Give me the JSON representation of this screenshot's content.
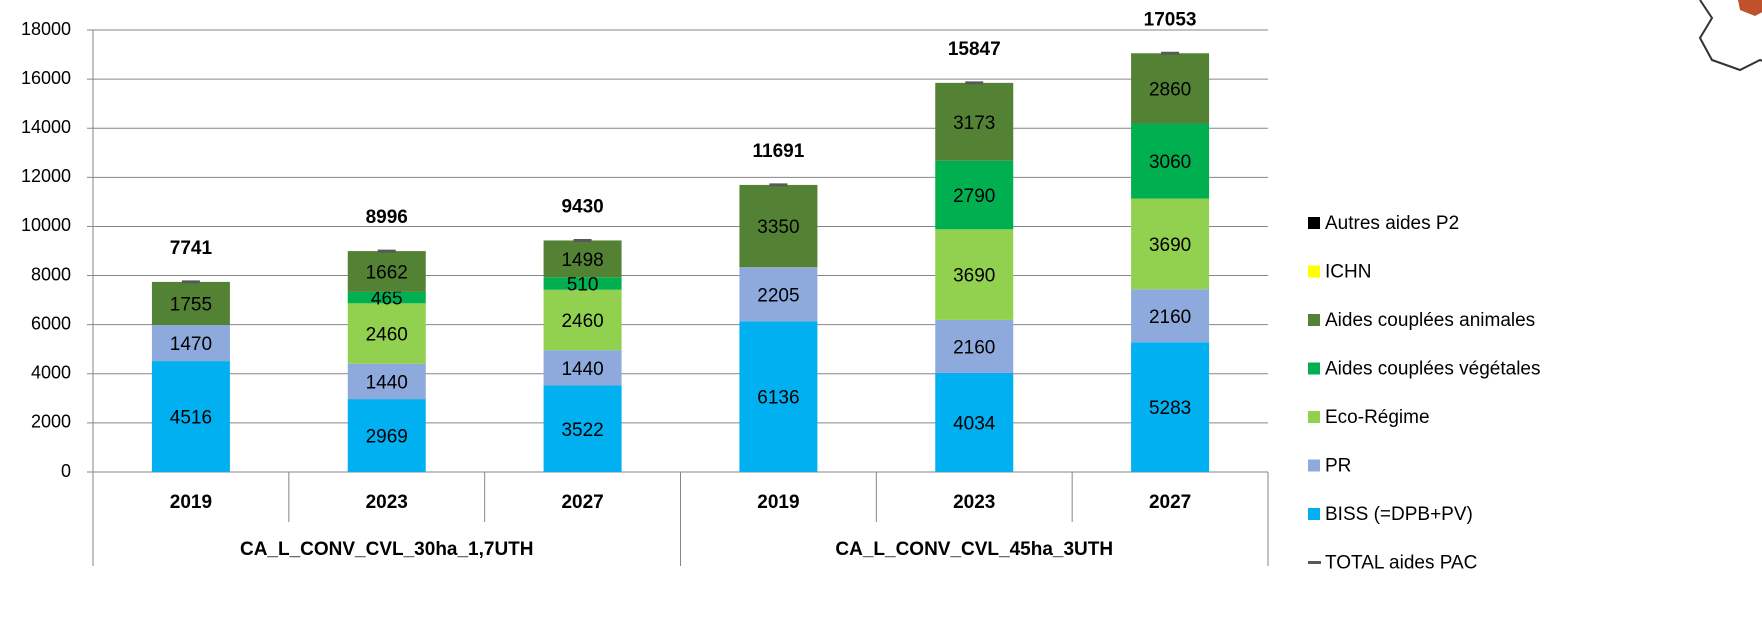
{
  "chart_data": {
    "type": "stacked_bar",
    "categories": [
      "2019",
      "2023",
      "2027",
      "2019",
      "2023",
      "2027"
    ],
    "groups": [
      "CA_L_CONV_CVL_30ha_1,7UTH",
      "CA_L_CONV_CVL_45ha_3UTH"
    ],
    "series": [
      {
        "name": "BISS (=DPB+PV)",
        "color": "#00b0f0",
        "values": [
          4516,
          2969,
          3522,
          6136,
          4034,
          5283
        ]
      },
      {
        "name": "PR",
        "color": "#8eaadc",
        "values": [
          1470,
          1440,
          1440,
          2205,
          2160,
          2160
        ]
      },
      {
        "name": "Eco-Régime",
        "color": "#92d050",
        "values": [
          0,
          2460,
          2460,
          0,
          3690,
          3690
        ]
      },
      {
        "name": "Aides couplées végétales",
        "color": "#00b050",
        "values": [
          0,
          465,
          510,
          0,
          2790,
          3060
        ]
      },
      {
        "name": "Aides couplées animales",
        "color": "#548235",
        "values": [
          1755,
          1662,
          1498,
          3350,
          3173,
          2860
        ]
      },
      {
        "name": "ICHN",
        "color": "#ffff00",
        "values": [
          0,
          0,
          0,
          0,
          0,
          0
        ]
      },
      {
        "name": "Autres aides P2",
        "color": "#000000",
        "values": [
          0,
          0,
          0,
          0,
          0,
          0
        ]
      }
    ],
    "total": {
      "name": "TOTAL aides PAC",
      "color": "#595959",
      "values": [
        7741,
        8996,
        9430,
        11691,
        15847,
        17053
      ]
    },
    "ylim": [
      0,
      18000
    ],
    "yticks": [
      0,
      2000,
      4000,
      6000,
      8000,
      10000,
      12000,
      14000,
      16000,
      18000
    ],
    "grid": true
  }
}
